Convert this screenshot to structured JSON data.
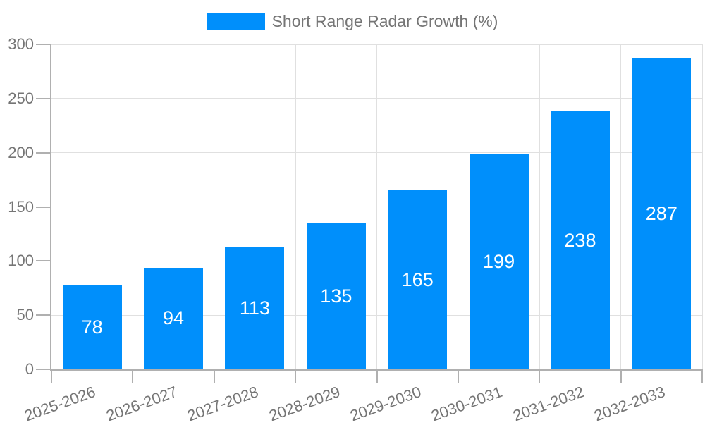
{
  "legend": {
    "label": "Short Range Radar Growth (%)"
  },
  "chart_data": {
    "type": "bar",
    "title": "",
    "categories": [
      "2025-2026",
      "2026-2027",
      "2027-2028",
      "2028-2029",
      "2029-2030",
      "2030-2031",
      "2031-2032",
      "2032-2033"
    ],
    "series": [
      {
        "name": "Short Range Radar Growth (%)",
        "values": [
          78,
          94,
          113,
          135,
          165,
          199,
          238,
          287
        ]
      }
    ],
    "xlabel": "",
    "ylabel": "",
    "ylim": [
      0,
      300
    ],
    "yticks": [
      0,
      50,
      100,
      150,
      200,
      250,
      300
    ],
    "grid": true,
    "legend_position": "top",
    "value_labels": "inside-center"
  },
  "colors": {
    "bar": "#008FFB",
    "axis_text": "#757575",
    "legend_text": "#757575",
    "grid_line": "#e0e0e0",
    "axis_line": "#b0b0b0",
    "value_label_text": "#ffffff",
    "background": "#ffffff"
  }
}
